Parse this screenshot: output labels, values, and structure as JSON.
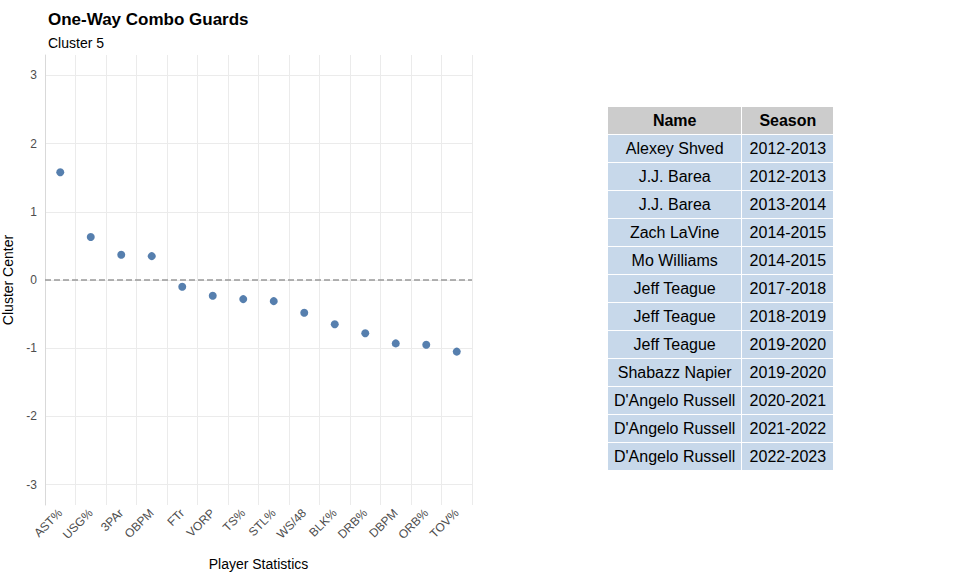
{
  "chart_data": {
    "type": "scatter",
    "title": "One-Way Combo Guards",
    "subtitle": "Cluster 5",
    "x_label": "Player Statistics",
    "y_label": "Cluster Center",
    "categories": [
      "AST%",
      "USG%",
      "3PAr",
      "OBPM",
      "FTr",
      "VORP",
      "TS%",
      "STL%",
      "WS/48",
      "BLK%",
      "DRB%",
      "DBPM",
      "ORB%",
      "TOV%"
    ],
    "values": [
      1.58,
      0.63,
      0.37,
      0.35,
      -0.1,
      -0.23,
      -0.28,
      -0.31,
      -0.48,
      -0.65,
      -0.78,
      -0.93,
      -0.95,
      -1.05
    ],
    "color": "#2c5f9a",
    "ylim": [
      -3.3,
      3.3
    ],
    "yticks": [
      -3,
      -2,
      -1,
      0,
      1,
      2,
      3
    ],
    "grid": true,
    "hline": 0
  },
  "table": {
    "header": [
      "Name",
      "Season"
    ],
    "rows": [
      [
        "Alexey Shved",
        "2012-2013"
      ],
      [
        "J.J. Barea",
        "2012-2013"
      ],
      [
        "J.J. Barea",
        "2013-2014"
      ],
      [
        "Zach LaVine",
        "2014-2015"
      ],
      [
        "Mo Williams",
        "2014-2015"
      ],
      [
        "Jeff Teague",
        "2017-2018"
      ],
      [
        "Jeff Teague",
        "2018-2019"
      ],
      [
        "Jeff Teague",
        "2019-2020"
      ],
      [
        "Shabazz Napier",
        "2019-2020"
      ],
      [
        "D'Angelo Russell",
        "2020-2021"
      ],
      [
        "D'Angelo Russell",
        "2021-2022"
      ],
      [
        "D'Angelo Russell",
        "2022-2023"
      ]
    ]
  }
}
